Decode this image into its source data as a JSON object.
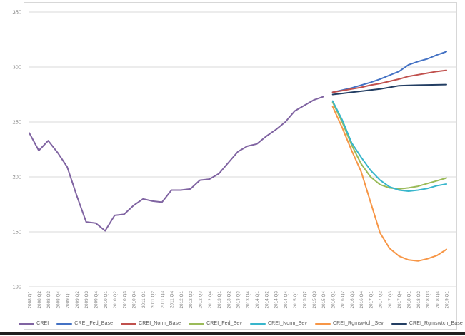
{
  "chart_data": {
    "type": "line",
    "title": "",
    "xlabel": "",
    "ylabel": "",
    "grid": true,
    "legend_position": "bottom",
    "y_axis": {
      "min": 100,
      "max": 350,
      "step": 50,
      "tick_labels": [
        "350",
        "300",
        "250",
        "200",
        "150",
        "100"
      ]
    },
    "categories": [
      "2008 Q1",
      "2008 Q2",
      "2008 Q3",
      "2008 Q4",
      "2009 Q1",
      "2009 Q2",
      "2009 Q3",
      "2009 Q4",
      "2010 Q1",
      "2010 Q2",
      "2010 Q3",
      "2010 Q4",
      "2011 Q1",
      "2011 Q2",
      "2011 Q3",
      "2011 Q4",
      "2012 Q1",
      "2012 Q2",
      "2012 Q3",
      "2012 Q4",
      "2013 Q1",
      "2013 Q2",
      "2013 Q3",
      "2013 Q4",
      "2014 Q1",
      "2014 Q2",
      "2014 Q3",
      "2014 Q4",
      "2015 Q1",
      "2015 Q2",
      "2015 Q3",
      "2015 Q4",
      "2016 Q1",
      "2016 Q2",
      "2016 Q3",
      "2016 Q4",
      "2017 Q1",
      "2017 Q2",
      "2017 Q3",
      "2017 Q4",
      "2018 Q1",
      "2018 Q2",
      "2018 Q3",
      "2018 Q4",
      "2019 Q1"
    ],
    "series": [
      {
        "name": "CREI",
        "color": "#8064A2",
        "values": [
          240,
          224,
          233,
          222,
          209,
          183,
          159,
          158,
          151,
          165,
          166,
          174,
          180,
          178,
          177,
          188,
          188,
          189,
          197,
          198,
          203,
          213,
          223,
          228,
          230,
          237,
          243,
          250,
          260,
          265,
          270,
          273,
          null,
          null,
          null,
          null,
          null,
          null,
          null,
          null,
          null,
          null,
          null,
          null,
          null
        ]
      },
      {
        "name": "CREI_Fed_Base",
        "color": "#4472C4",
        "values": [
          null,
          null,
          null,
          null,
          null,
          null,
          null,
          null,
          null,
          null,
          null,
          null,
          null,
          null,
          null,
          null,
          null,
          null,
          null,
          null,
          null,
          null,
          null,
          null,
          null,
          null,
          null,
          null,
          null,
          null,
          null,
          null,
          277,
          279,
          281,
          283.5,
          286,
          289,
          292.5,
          296,
          302,
          305,
          307.5,
          311,
          314
        ]
      },
      {
        "name": "CREI_Norm_Base",
        "color": "#C0504D",
        "values": [
          null,
          null,
          null,
          null,
          null,
          null,
          null,
          null,
          null,
          null,
          null,
          null,
          null,
          null,
          null,
          null,
          null,
          null,
          null,
          null,
          null,
          null,
          null,
          null,
          null,
          null,
          null,
          null,
          null,
          null,
          null,
          null,
          277,
          278.5,
          280,
          281.5,
          283.5,
          285,
          287,
          289,
          291.5,
          293,
          294.5,
          296,
          297
        ]
      },
      {
        "name": "CREI_Fed_Sev",
        "color": "#9BBB59",
        "values": [
          null,
          null,
          null,
          null,
          null,
          null,
          null,
          null,
          null,
          null,
          null,
          null,
          null,
          null,
          null,
          null,
          null,
          null,
          null,
          null,
          null,
          null,
          null,
          null,
          null,
          null,
          null,
          null,
          null,
          null,
          null,
          null,
          268,
          250,
          229,
          212,
          200,
          193,
          190,
          189,
          190,
          191.5,
          194,
          196.5,
          199
        ]
      },
      {
        "name": "CREI_Norm_Sev",
        "color": "#38B6CC",
        "values": [
          null,
          null,
          null,
          null,
          null,
          null,
          null,
          null,
          null,
          null,
          null,
          null,
          null,
          null,
          null,
          null,
          null,
          null,
          null,
          null,
          null,
          null,
          null,
          null,
          null,
          null,
          null,
          null,
          null,
          null,
          null,
          null,
          269,
          252,
          231,
          218,
          206,
          197,
          191,
          188,
          187,
          188,
          189.5,
          192,
          193.5
        ]
      },
      {
        "name": "CREI_Rgmswtch_Sev",
        "color": "#F79646",
        "values": [
          null,
          null,
          null,
          null,
          null,
          null,
          null,
          null,
          null,
          null,
          null,
          null,
          null,
          null,
          null,
          null,
          null,
          null,
          null,
          null,
          null,
          null,
          null,
          null,
          null,
          null,
          null,
          null,
          null,
          null,
          null,
          null,
          264,
          245,
          224,
          205,
          177,
          149,
          135,
          128,
          124.5,
          123.5,
          125.5,
          128.5,
          134
        ]
      },
      {
        "name": "CREI_Rgmswtch_Base",
        "color": "#233E63",
        "values": [
          null,
          null,
          null,
          null,
          null,
          null,
          null,
          null,
          null,
          null,
          null,
          null,
          null,
          null,
          null,
          null,
          null,
          null,
          null,
          null,
          null,
          null,
          null,
          null,
          null,
          null,
          null,
          null,
          null,
          null,
          null,
          null,
          275,
          276,
          277,
          278,
          279,
          280,
          281.5,
          283,
          283.3,
          283.5,
          283.7,
          283.8,
          284
        ]
      }
    ],
    "axis_text_color": "#7f7f7f",
    "gridline_color": "#d9d9d9"
  }
}
